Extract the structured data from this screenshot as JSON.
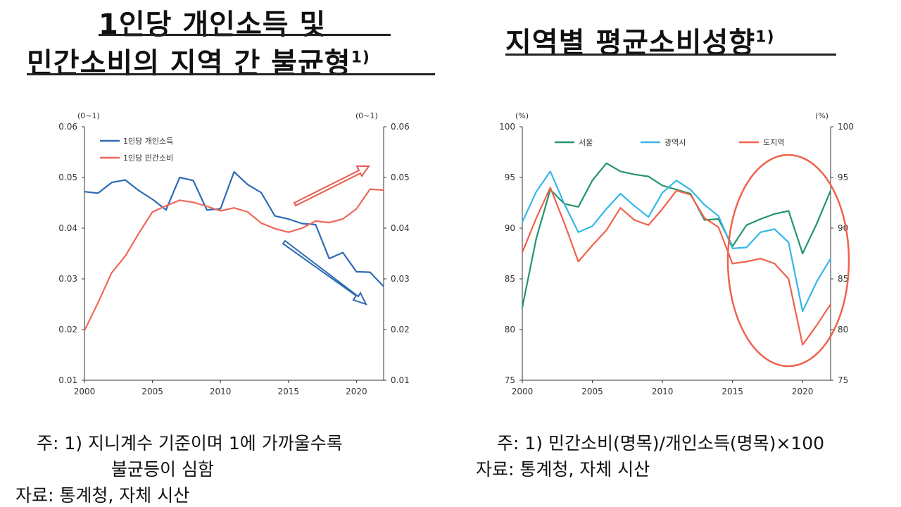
{
  "left": {
    "title_line1": "1인당 개인소득 및",
    "title_line2": "민간소비의 지역 간 불균형",
    "title_sup": "1)",
    "notes": {
      "line1": "주: 1) 지니계수 기준이며 1에 가까울수록",
      "line2": "불균등이 심함",
      "line3": "자료: 통계청, 자체 시산"
    }
  },
  "right": {
    "title": "지역별 평균소비성향",
    "title_sup": "1)",
    "notes": {
      "line1": "주: 1) 민간소비(명목)/개인소득(명목)×100",
      "line2": "자료: 통계청, 자체 시산"
    }
  },
  "chart_data": [
    {
      "type": "line",
      "title": "1인당 개인소득 및 민간소비의 지역 간 불균형",
      "ylabel_left": "(0~1)",
      "ylabel_right": "(0~1)",
      "ylim": [
        0.01,
        0.06
      ],
      "yticks": [
        "0.01",
        "0.02",
        "0.03",
        "0.04",
        "0.05",
        "0.06"
      ],
      "xlim": [
        2000,
        2022
      ],
      "xticks": [
        "2000",
        "2005",
        "2010",
        "2015",
        "2020"
      ],
      "x": [
        2000,
        2001,
        2002,
        2003,
        2004,
        2005,
        2006,
        2007,
        2008,
        2009,
        2010,
        2011,
        2012,
        2013,
        2014,
        2015,
        2016,
        2017,
        2018,
        2019,
        2020,
        2021,
        2022
      ],
      "series": [
        {
          "name": "1인당 개인소득",
          "color": "#2e6bb3",
          "values": [
            0.0472,
            0.0469,
            0.049,
            0.0495,
            0.0474,
            0.0457,
            0.0436,
            0.05,
            0.0494,
            0.0436,
            0.0438,
            0.0511,
            0.0486,
            0.047,
            0.0424,
            0.0418,
            0.0409,
            0.0407,
            0.034,
            0.0352,
            0.0314,
            0.0313,
            0.0285
          ]
        },
        {
          "name": "1인당 민간소비",
          "color": "#f0675a",
          "values": [
            0.0198,
            0.0253,
            0.0312,
            0.0345,
            0.039,
            0.0432,
            0.0444,
            0.0455,
            0.0451,
            0.0443,
            0.0434,
            0.044,
            0.0432,
            0.041,
            0.0399,
            0.0392,
            0.04,
            0.0414,
            0.0411,
            0.0418,
            0.0438,
            0.0477,
            0.0475
          ]
        }
      ],
      "legend": "top-left",
      "annotations": [
        "up-arrow",
        "down-arrow"
      ]
    },
    {
      "type": "line",
      "title": "지역별 평균소비성향",
      "ylabel_left": "(%)",
      "ylabel_right": "(%)",
      "ylim": [
        75,
        100
      ],
      "yticks": [
        "75",
        "80",
        "85",
        "90",
        "95",
        "100"
      ],
      "xlim": [
        2000,
        2022
      ],
      "xticks": [
        "2000",
        "2005",
        "2010",
        "2015",
        "2020"
      ],
      "x": [
        2000,
        2001,
        2002,
        2003,
        2004,
        2005,
        2006,
        2007,
        2008,
        2009,
        2010,
        2011,
        2012,
        2013,
        2014,
        2015,
        2016,
        2017,
        2018,
        2019,
        2020,
        2021,
        2022
      ],
      "series": [
        {
          "name": "서울",
          "color": "#23956b",
          "values": [
            82.2,
            89.0,
            93.8,
            92.4,
            92.1,
            94.7,
            96.4,
            95.6,
            95.3,
            95.1,
            94.2,
            93.8,
            93.4,
            90.8,
            90.9,
            88.2,
            90.3,
            90.9,
            91.4,
            91.7,
            87.5,
            90.4,
            93.7
          ]
        },
        {
          "name": "광역시",
          "color": "#34b7e8",
          "values": [
            90.6,
            93.6,
            95.6,
            92.4,
            89.6,
            90.2,
            91.9,
            93.4,
            92.2,
            91.1,
            93.5,
            94.7,
            93.8,
            92.3,
            91.2,
            88.0,
            88.1,
            89.6,
            89.9,
            88.6,
            81.8,
            84.7,
            87.0
          ]
        },
        {
          "name": "도지역",
          "color": "#f0624d",
          "values": [
            87.6,
            91.0,
            94.0,
            90.5,
            86.7,
            88.3,
            89.8,
            92.0,
            90.8,
            90.3,
            91.9,
            93.7,
            93.3,
            91.0,
            90.1,
            86.5,
            86.7,
            87.0,
            86.5,
            85.0,
            78.5,
            80.4,
            82.5
          ]
        }
      ],
      "legend": "top",
      "annotations": [
        "ellipse-highlight"
      ]
    }
  ]
}
